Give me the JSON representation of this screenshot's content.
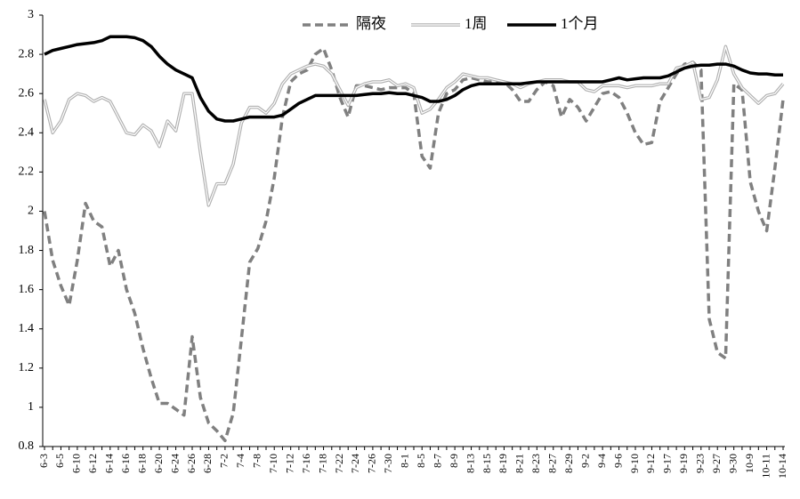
{
  "chart_data": {
    "type": "line",
    "categories": [
      "6-3",
      null,
      "6-5",
      null,
      "6-10",
      null,
      "6-12",
      null,
      "6-14",
      null,
      "6-16",
      null,
      "6-18",
      null,
      "6-20",
      null,
      "6-24",
      null,
      "6-26",
      null,
      "6-28",
      null,
      "7-2",
      null,
      "7-4",
      null,
      "7-8",
      null,
      "7-10",
      null,
      "7-12",
      null,
      "7-16",
      null,
      "7-18",
      null,
      "7-22",
      null,
      "7-24",
      null,
      "7-26",
      null,
      "7-30",
      null,
      "8-1",
      null,
      "8-5",
      null,
      "8-7",
      null,
      "8-9",
      null,
      "8-13",
      null,
      "8-15",
      null,
      "8-19",
      null,
      "8-21",
      null,
      "8-23",
      null,
      "8-27",
      null,
      "8-29",
      null,
      "9-2",
      null,
      "9-4",
      null,
      "9-6",
      null,
      "9-10",
      null,
      "9-12",
      null,
      "9-17",
      null,
      "9-19",
      null,
      "9-23",
      null,
      "9-27",
      null,
      "9-30",
      null,
      "10-9",
      null,
      "10-11",
      null,
      "10-14"
    ],
    "series": [
      {
        "name": "隔夜",
        "color": "#808080",
        "style": "dashed",
        "values": [
          2.0,
          1.75,
          1.62,
          1.52,
          1.75,
          2.04,
          1.95,
          1.92,
          1.72,
          1.8,
          1.6,
          1.48,
          1.3,
          1.15,
          1.02,
          1.02,
          0.99,
          0.96,
          1.36,
          1.05,
          0.92,
          0.88,
          0.83,
          0.97,
          1.35,
          1.74,
          1.81,
          1.95,
          2.17,
          2.48,
          2.66,
          2.7,
          2.72,
          2.8,
          2.83,
          2.72,
          2.58,
          2.48,
          2.64,
          2.64,
          2.63,
          2.62,
          2.63,
          2.63,
          2.63,
          2.6,
          2.28,
          2.22,
          2.5,
          2.6,
          2.62,
          2.67,
          2.68,
          2.67,
          2.66,
          2.66,
          2.66,
          2.62,
          2.56,
          2.56,
          2.62,
          2.66,
          2.64,
          2.48,
          2.57,
          2.53,
          2.46,
          2.53,
          2.6,
          2.61,
          2.58,
          2.5,
          2.4,
          2.34,
          2.35,
          2.56,
          2.63,
          2.7,
          2.75,
          2.76,
          2.72,
          1.45,
          1.28,
          1.25,
          2.65,
          2.62,
          2.15,
          2.0,
          1.9,
          2.22,
          2.57
        ]
      },
      {
        "name": "1周",
        "color": "#b0b0b0",
        "style": "double",
        "values": [
          2.57,
          2.4,
          2.46,
          2.57,
          2.6,
          2.59,
          2.56,
          2.58,
          2.56,
          2.48,
          2.4,
          2.39,
          2.44,
          2.41,
          2.33,
          2.46,
          2.41,
          2.6,
          2.6,
          2.3,
          2.03,
          2.14,
          2.14,
          2.24,
          2.45,
          2.53,
          2.53,
          2.5,
          2.55,
          2.65,
          2.7,
          2.72,
          2.74,
          2.75,
          2.74,
          2.7,
          2.62,
          2.54,
          2.63,
          2.65,
          2.66,
          2.66,
          2.67,
          2.64,
          2.65,
          2.63,
          2.5,
          2.52,
          2.57,
          2.63,
          2.66,
          2.7,
          2.69,
          2.68,
          2.68,
          2.67,
          2.66,
          2.65,
          2.63,
          2.65,
          2.66,
          2.67,
          2.67,
          2.67,
          2.66,
          2.66,
          2.62,
          2.61,
          2.64,
          2.64,
          2.64,
          2.63,
          2.64,
          2.64,
          2.64,
          2.65,
          2.65,
          2.73,
          2.74,
          2.76,
          2.57,
          2.58,
          2.67,
          2.84,
          2.7,
          2.63,
          2.59,
          2.55,
          2.59,
          2.6,
          2.65
        ]
      },
      {
        "name": "1个月",
        "color": "#000000",
        "style": "solid",
        "values": [
          2.8,
          2.82,
          2.83,
          2.84,
          2.85,
          2.855,
          2.86,
          2.87,
          2.89,
          2.89,
          2.89,
          2.885,
          2.87,
          2.84,
          2.79,
          2.75,
          2.72,
          2.7,
          2.68,
          2.58,
          2.51,
          2.47,
          2.46,
          2.46,
          2.47,
          2.48,
          2.48,
          2.48,
          2.48,
          2.49,
          2.52,
          2.55,
          2.57,
          2.59,
          2.59,
          2.59,
          2.59,
          2.59,
          2.59,
          2.595,
          2.6,
          2.6,
          2.605,
          2.6,
          2.6,
          2.59,
          2.58,
          2.56,
          2.56,
          2.57,
          2.59,
          2.62,
          2.64,
          2.65,
          2.65,
          2.65,
          2.65,
          2.65,
          2.65,
          2.655,
          2.66,
          2.66,
          2.66,
          2.66,
          2.66,
          2.66,
          2.66,
          2.66,
          2.66,
          2.67,
          2.68,
          2.67,
          2.675,
          2.68,
          2.68,
          2.68,
          2.69,
          2.71,
          2.73,
          2.74,
          2.745,
          2.745,
          2.75,
          2.75,
          2.74,
          2.72,
          2.705,
          2.7,
          2.7,
          2.695,
          2.695
        ]
      }
    ],
    "ylim": [
      0.8,
      3
    ],
    "yticks": [
      0.8,
      1,
      1.2,
      1.4,
      1.6,
      1.8,
      2,
      2.2,
      2.4,
      2.6,
      2.8,
      3
    ],
    "grid": false,
    "legend": "top"
  }
}
